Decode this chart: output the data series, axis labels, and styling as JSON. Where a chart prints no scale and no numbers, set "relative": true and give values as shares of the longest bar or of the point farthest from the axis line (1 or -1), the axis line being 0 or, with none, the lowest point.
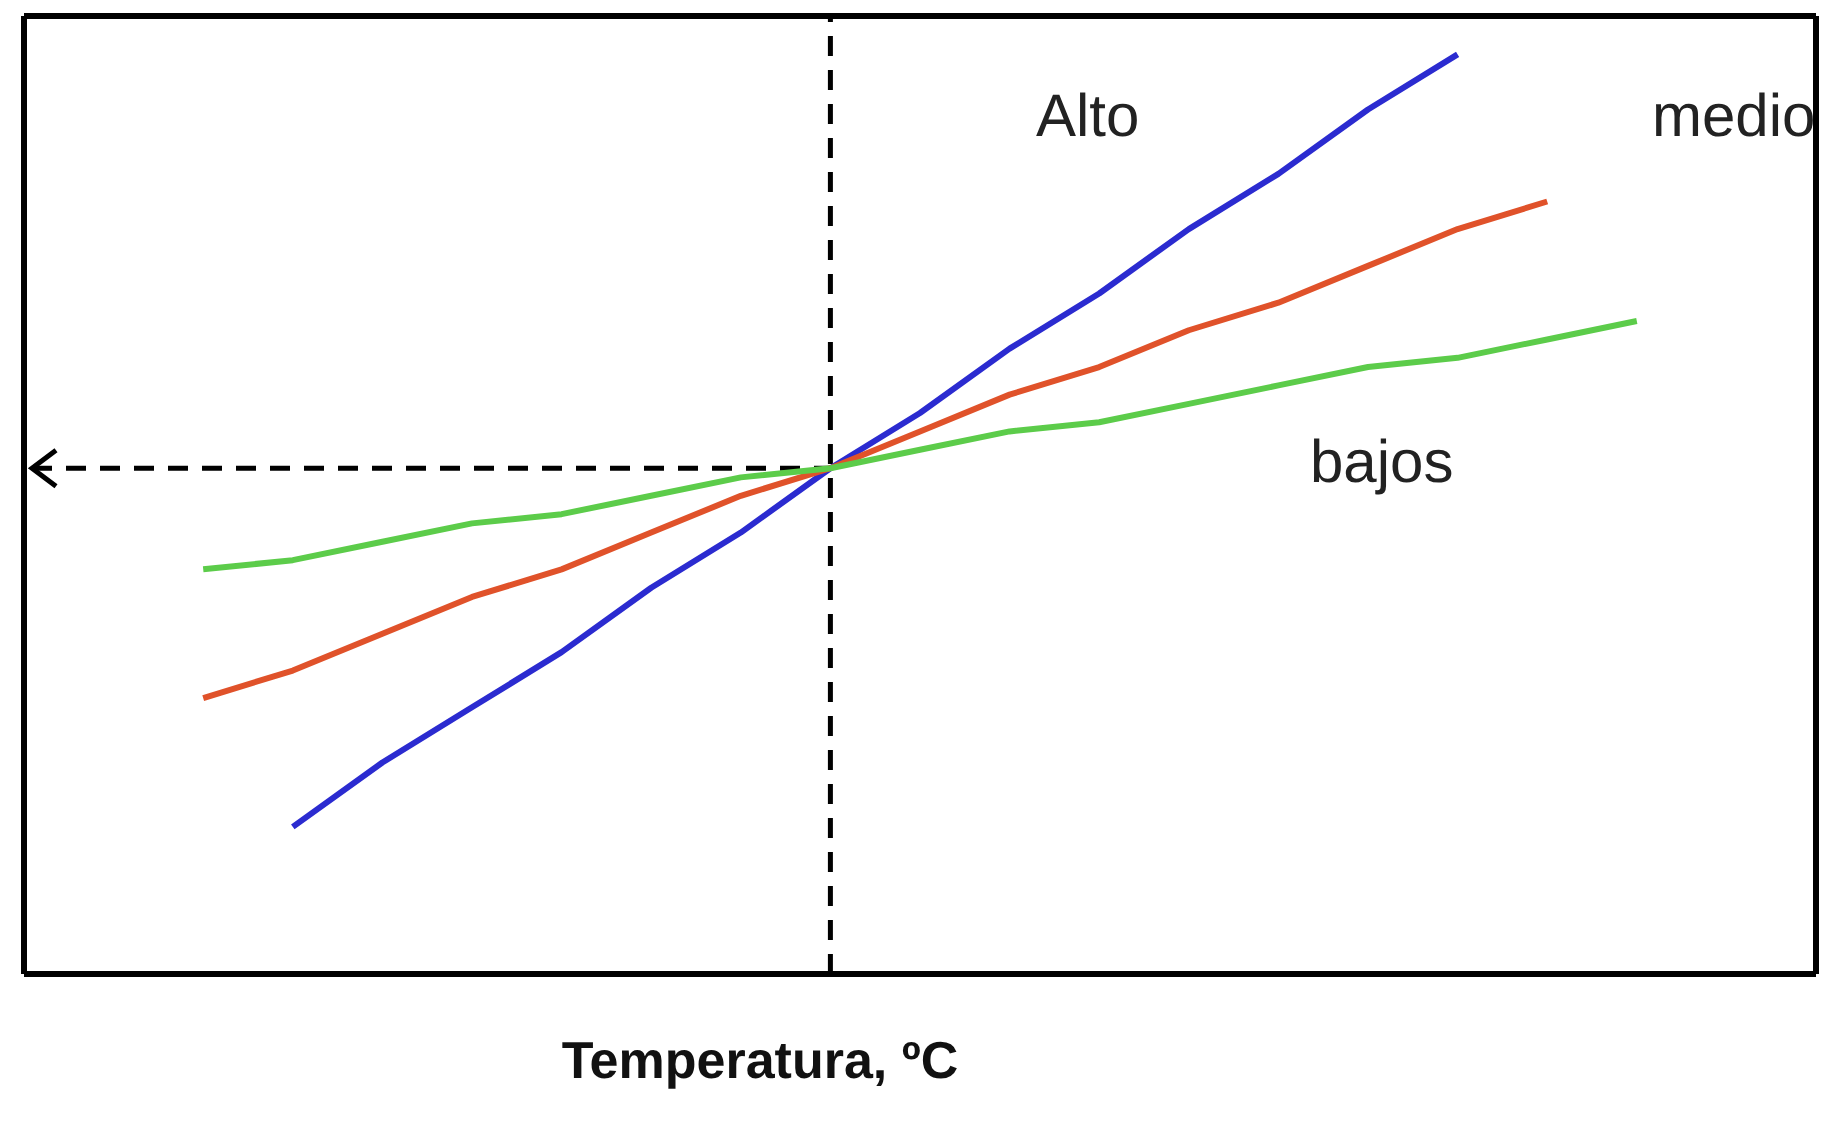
{
  "chart_data": {
    "type": "line",
    "relative": true,
    "xlabel": "Temperatura, ºC",
    "categories": [
      null,
      null,
      null,
      null,
      null,
      null,
      null,
      null,
      null,
      null,
      null,
      null,
      null,
      null,
      null,
      null,
      null,
      null,
      null,
      null,
      null
    ],
    "series": [
      {
        "name": "Alto",
        "color": "#2b2bd0",
        "values": [
          null,
          null,
          null,
          0.16,
          0.23,
          0.29,
          0.35,
          0.42,
          0.48,
          0.55,
          0.61,
          0.68,
          0.74,
          0.81,
          0.87,
          0.94,
          1,
          null,
          null,
          null,
          null
        ]
      },
      {
        "name": "medio",
        "color": "#e0522a",
        "values": [
          null,
          null,
          0.3,
          0.33,
          0.37,
          0.41,
          0.44,
          0.48,
          0.52,
          0.55,
          0.59,
          0.63,
          0.66,
          0.7,
          0.73,
          0.77,
          0.81,
          0.84,
          null,
          null,
          null
        ]
      },
      {
        "name": "bajos",
        "color": "#5ccc4a",
        "values": [
          null,
          null,
          0.44,
          0.45,
          0.47,
          0.49,
          0.5,
          0.52,
          0.54,
          0.55,
          0.57,
          0.59,
          0.6,
          0.62,
          0.64,
          0.66,
          0.67,
          0.69,
          0.71,
          null,
          null
        ]
      }
    ],
    "ref_lines": [
      {
        "axis": "y",
        "value": 0.55,
        "line_style": "dashed",
        "color": "#000000"
      }
    ],
    "legend": false,
    "marker": "none",
    "line_style": "solid"
  }
}
